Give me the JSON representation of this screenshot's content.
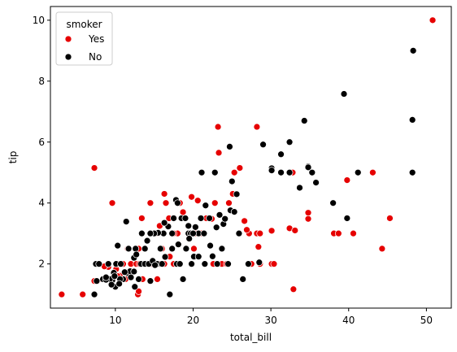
{
  "chart_data": {
    "type": "scatter",
    "xlabel": "total_bill",
    "ylabel": "tip",
    "xlim": [
      1.65,
      53.2
    ],
    "ylim": [
      0.55,
      10.45
    ],
    "xticks": [
      10,
      20,
      30,
      40,
      50
    ],
    "yticks": [
      2,
      4,
      6,
      8,
      10
    ],
    "grid": false,
    "legend": {
      "title": "smoker",
      "placement": "top-left",
      "entries": [
        "Yes",
        "No"
      ]
    },
    "series": [
      {
        "name": "Yes",
        "color": "#e60000",
        "points": [
          [
            50.8,
            10.0
          ],
          [
            7.3,
            5.15
          ],
          [
            23.2,
            6.5
          ],
          [
            23.3,
            5.65
          ],
          [
            28.2,
            6.5
          ],
          [
            25.3,
            5.0
          ],
          [
            26.0,
            5.15
          ],
          [
            32.8,
            5.0
          ],
          [
            43.1,
            5.0
          ],
          [
            39.8,
            4.75
          ],
          [
            45.3,
            3.5
          ],
          [
            44.3,
            2.5
          ],
          [
            38.1,
            3.0
          ],
          [
            38.7,
            3.0
          ],
          [
            40.6,
            3.0
          ],
          [
            34.8,
            3.68
          ],
          [
            34.8,
            3.48
          ],
          [
            32.4,
            3.17
          ],
          [
            33.1,
            3.1
          ],
          [
            30.1,
            3.09
          ],
          [
            28.2,
            3.0
          ],
          [
            28.6,
            3.0
          ],
          [
            27.2,
            3.0
          ],
          [
            26.9,
            3.12
          ],
          [
            26.6,
            3.41
          ],
          [
            24.6,
            4.0
          ],
          [
            25.1,
            4.3
          ],
          [
            22.8,
            4.0
          ],
          [
            21.7,
            3.5
          ],
          [
            22.4,
            3.48
          ],
          [
            28.4,
            2.56
          ],
          [
            28.6,
            2.0
          ],
          [
            27.5,
            2.0
          ],
          [
            30.1,
            2.0
          ],
          [
            30.4,
            2.0
          ],
          [
            32.9,
            1.17
          ],
          [
            23.7,
            2.0
          ],
          [
            24.3,
            2.0
          ],
          [
            22.6,
            2.0
          ],
          [
            20.3,
            3.0
          ],
          [
            20.6,
            4.08
          ],
          [
            19.8,
            4.2
          ],
          [
            18.3,
            4.0
          ],
          [
            18.0,
            3.0
          ],
          [
            17.5,
            3.0
          ],
          [
            18.2,
            2.0
          ],
          [
            16.3,
            4.3
          ],
          [
            16.5,
            4.0
          ],
          [
            16.9,
            3.5
          ],
          [
            15.7,
            3.25
          ],
          [
            15.4,
            3.0
          ],
          [
            15.0,
            3.0
          ],
          [
            14.5,
            4.0
          ],
          [
            13.4,
            3.5
          ],
          [
            13.0,
            2.5
          ],
          [
            12.5,
            2.25
          ],
          [
            11.6,
            2.5
          ],
          [
            11.3,
            1.5
          ],
          [
            10.6,
            1.61
          ],
          [
            10.1,
            1.83
          ],
          [
            10.3,
            2.0
          ],
          [
            11.0,
            2.0
          ],
          [
            12.0,
            2.0
          ],
          [
            12.7,
            2.0
          ],
          [
            13.1,
            2.0
          ],
          [
            13.5,
            1.5
          ],
          [
            14.1,
            2.0
          ],
          [
            14.8,
            2.0
          ],
          [
            15.4,
            1.5
          ],
          [
            16.3,
            2.0
          ],
          [
            16.0,
            2.5
          ],
          [
            17.0,
            2.24
          ],
          [
            9.6,
            4.0
          ],
          [
            9.7,
            1.5
          ],
          [
            9.1,
            1.9
          ],
          [
            8.6,
            1.92
          ],
          [
            7.7,
            1.44
          ],
          [
            7.3,
            1.44
          ],
          [
            5.8,
            1.0
          ],
          [
            3.1,
            1.0
          ],
          [
            12.9,
            1.0
          ],
          [
            13.0,
            1.1
          ],
          [
            10.3,
            1.6
          ],
          [
            11.9,
            1.63
          ],
          [
            14.7,
            2.0
          ],
          [
            15.7,
            2.0
          ],
          [
            17.5,
            2.0
          ],
          [
            20.1,
            2.5
          ],
          [
            21.0,
            3.0
          ],
          [
            18.7,
            3.7
          ]
        ]
      },
      {
        "name": "No",
        "color": "#000000",
        "points": [
          [
            48.3,
            9.0
          ],
          [
            39.4,
            7.58
          ],
          [
            48.2,
            6.73
          ],
          [
            34.3,
            6.7
          ],
          [
            32.4,
            6.0
          ],
          [
            29.0,
            5.92
          ],
          [
            31.3,
            5.6
          ],
          [
            24.7,
            5.85
          ],
          [
            30.1,
            5.14
          ],
          [
            30.1,
            5.07
          ],
          [
            34.8,
            5.2
          ],
          [
            34.8,
            5.17
          ],
          [
            31.3,
            5.0
          ],
          [
            32.4,
            5.0
          ],
          [
            35.3,
            5.0
          ],
          [
            41.2,
            5.0
          ],
          [
            48.2,
            5.0
          ],
          [
            21.1,
            5.0
          ],
          [
            22.8,
            5.0
          ],
          [
            25.0,
            4.71
          ],
          [
            35.8,
            4.67
          ],
          [
            33.7,
            4.5
          ],
          [
            25.6,
            4.29
          ],
          [
            24.8,
            3.76
          ],
          [
            25.3,
            3.71
          ],
          [
            38.0,
            4.0
          ],
          [
            39.8,
            3.5
          ],
          [
            23.9,
            3.31
          ],
          [
            22.1,
            3.5
          ],
          [
            23.4,
            3.61
          ],
          [
            24.1,
            3.48
          ],
          [
            23.0,
            3.2
          ],
          [
            20.7,
            3.0
          ],
          [
            19.4,
            3.0
          ],
          [
            18.5,
            3.5
          ],
          [
            19.7,
            3.0
          ],
          [
            20.3,
            3.21
          ],
          [
            21.0,
            3.5
          ],
          [
            21.6,
            3.92
          ],
          [
            17.8,
            4.1
          ],
          [
            18.0,
            4.0
          ],
          [
            19.0,
            3.5
          ],
          [
            19.4,
            3.25
          ],
          [
            20.0,
            3.0
          ],
          [
            21.4,
            3.0
          ],
          [
            17.5,
            3.5
          ],
          [
            17.3,
            3.0
          ],
          [
            16.8,
            3.23
          ],
          [
            16.2,
            3.0
          ],
          [
            15.5,
            3.02
          ],
          [
            15.0,
            3.0
          ],
          [
            14.5,
            3.0
          ],
          [
            14.1,
            2.76
          ],
          [
            13.8,
            2.5
          ],
          [
            13.4,
            3.0
          ],
          [
            12.6,
            2.5
          ],
          [
            12.4,
            2.2
          ],
          [
            11.4,
            3.39
          ],
          [
            11.7,
            2.5
          ],
          [
            10.3,
            2.6
          ],
          [
            10.1,
            2.0
          ],
          [
            9.8,
            1.71
          ],
          [
            9.6,
            1.46
          ],
          [
            9.3,
            1.5
          ],
          [
            10.0,
            1.25
          ],
          [
            8.5,
            1.5
          ],
          [
            8.4,
            1.5
          ],
          [
            8.8,
            1.48
          ],
          [
            7.5,
            2.0
          ],
          [
            7.3,
            1.0
          ],
          [
            7.6,
            1.44
          ],
          [
            7.9,
            2.0
          ],
          [
            9.1,
            2.0
          ],
          [
            10.7,
            2.0
          ],
          [
            11.0,
            1.5
          ],
          [
            11.5,
            1.7
          ],
          [
            11.9,
            1.76
          ],
          [
            12.4,
            1.75
          ],
          [
            12.7,
            2.31
          ],
          [
            13.3,
            2.0
          ],
          [
            13.8,
            2.0
          ],
          [
            14.3,
            2.0
          ],
          [
            14.8,
            2.1
          ],
          [
            15.4,
            2.0
          ],
          [
            15.8,
            2.5
          ],
          [
            16.0,
            2.0
          ],
          [
            16.4,
            2.23
          ],
          [
            17.0,
            1.0
          ],
          [
            17.3,
            2.5
          ],
          [
            17.9,
            2.0
          ],
          [
            18.3,
            2.0
          ],
          [
            18.7,
            1.5
          ],
          [
            19.1,
            2.5
          ],
          [
            19.8,
            2.0
          ],
          [
            20.1,
            2.24
          ],
          [
            20.7,
            2.24
          ],
          [
            21.5,
            2.0
          ],
          [
            22.5,
            2.25
          ],
          [
            23.1,
            2.0
          ],
          [
            24.5,
            2.0
          ],
          [
            25.9,
            3.0
          ],
          [
            26.4,
            1.5
          ],
          [
            27.1,
            2.0
          ],
          [
            28.5,
            2.05
          ],
          [
            15.1,
            1.96
          ],
          [
            16.3,
            3.35
          ],
          [
            18.1,
            2.64
          ],
          [
            19.5,
            2.83
          ],
          [
            22.2,
            2.6
          ],
          [
            23.7,
            2.5
          ],
          [
            10.6,
            1.5
          ],
          [
            11.2,
            1.73
          ],
          [
            12.0,
            1.56
          ],
          [
            13.0,
            1.5
          ],
          [
            14.5,
            1.44
          ],
          [
            12.5,
            1.25
          ],
          [
            10.5,
            1.35
          ],
          [
            9.9,
            1.6
          ],
          [
            8.8,
            1.56
          ],
          [
            9.5,
            1.32
          ]
        ]
      }
    ]
  }
}
